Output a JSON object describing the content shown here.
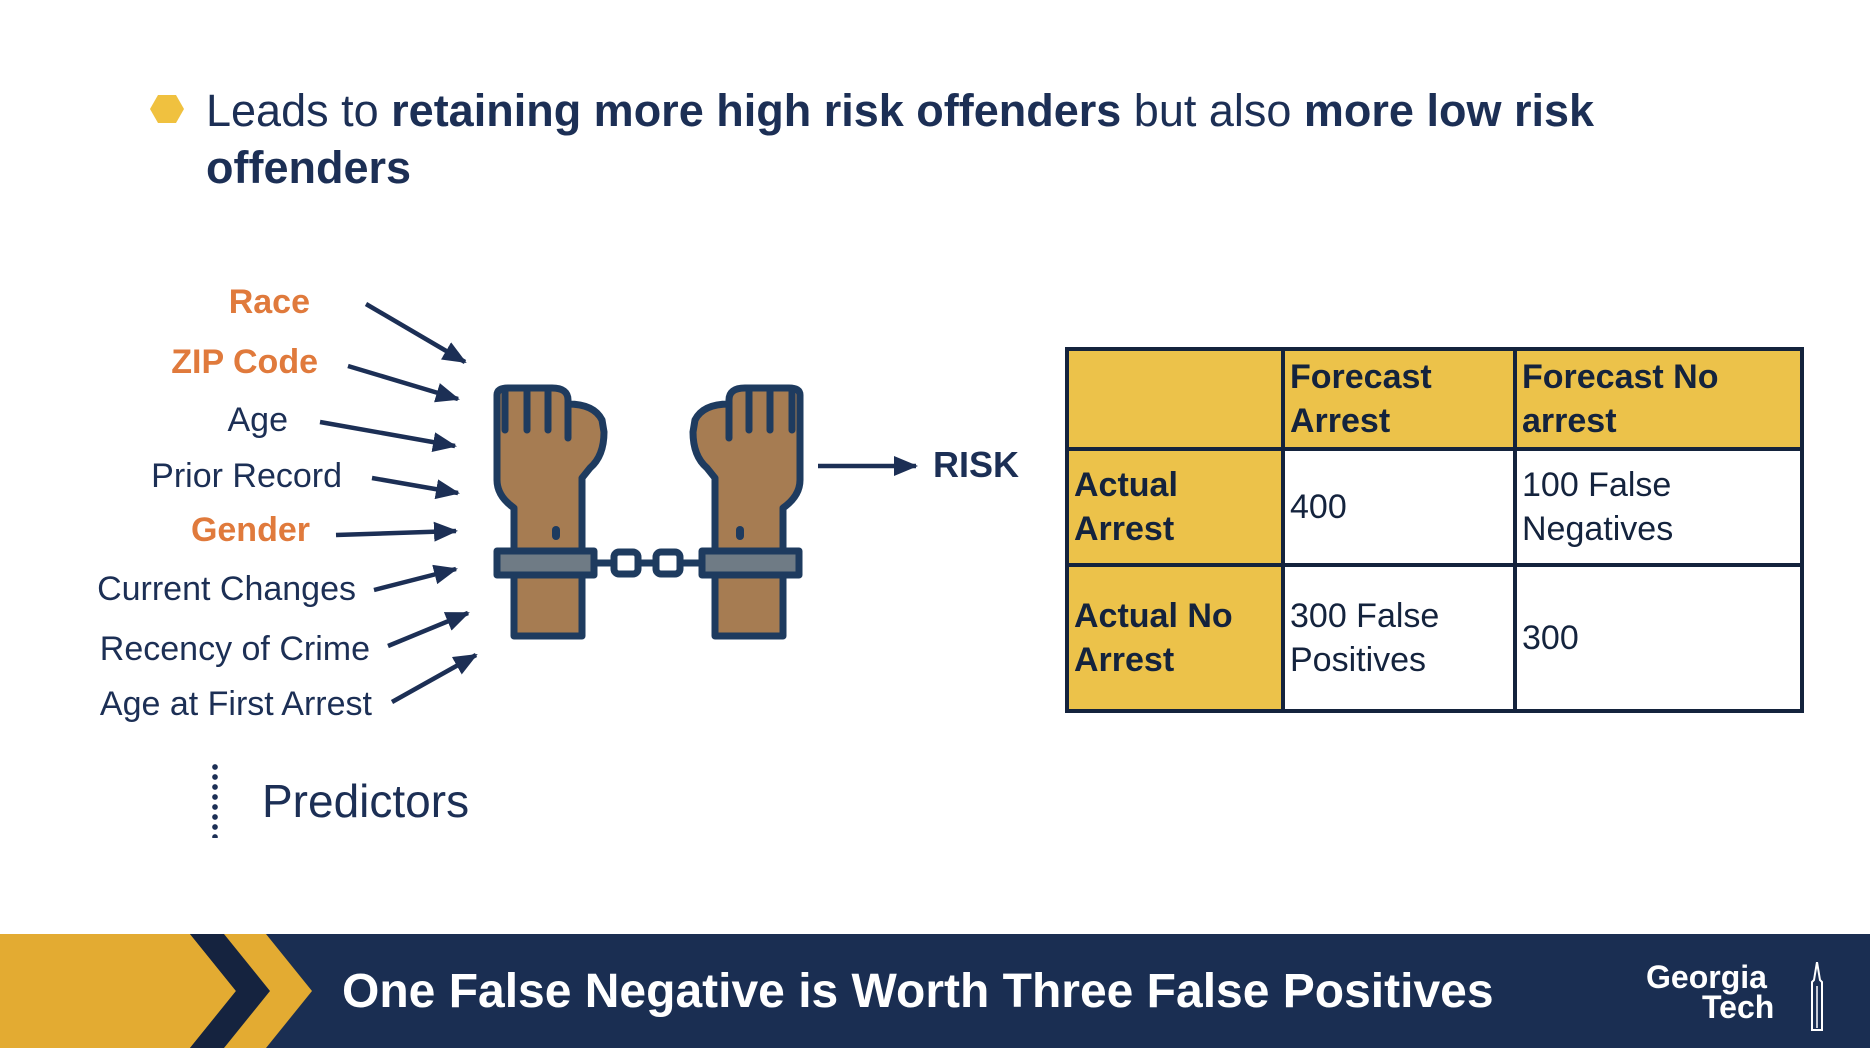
{
  "bullet": {
    "icon": "hexagon-bullet-icon",
    "part1": "Leads to ",
    "bold1": "retaining more high risk offenders",
    "part2": " but also ",
    "bold2": "more low risk offenders"
  },
  "predictors": {
    "items": [
      {
        "label": "Race",
        "highlight": true
      },
      {
        "label": "ZIP Code",
        "highlight": true
      },
      {
        "label": "Age",
        "highlight": false
      },
      {
        "label": "Prior Record",
        "highlight": false
      },
      {
        "label": "Gender",
        "highlight": true
      },
      {
        "label": "Current Changes",
        "highlight": false
      },
      {
        "label": "Recency of Crime",
        "highlight": false
      },
      {
        "label": "Age at First Arrest",
        "highlight": false
      }
    ],
    "caption": "Predictors",
    "highlight_color": "#e07a3c"
  },
  "diagram": {
    "icon": "handcuffed-hands-icon",
    "output_label": "RISK"
  },
  "matrix": {
    "header": [
      "",
      "Forecast Arrest",
      "Forecast No arrest"
    ],
    "rows": [
      {
        "label": "Actual Arrest",
        "cells": [
          "400",
          "100 False Negatives"
        ]
      },
      {
        "label": "Actual No Arrest",
        "cells": [
          "300 False Positives",
          "300"
        ]
      }
    ],
    "header_color": "#ecc24a"
  },
  "footer": {
    "title": "One False Negative is Worth Three False Positives",
    "logo_line1": "Georgia",
    "logo_line2": "Tech",
    "bar_color": "#1a2e52",
    "accent_color": "#e3ab32"
  }
}
